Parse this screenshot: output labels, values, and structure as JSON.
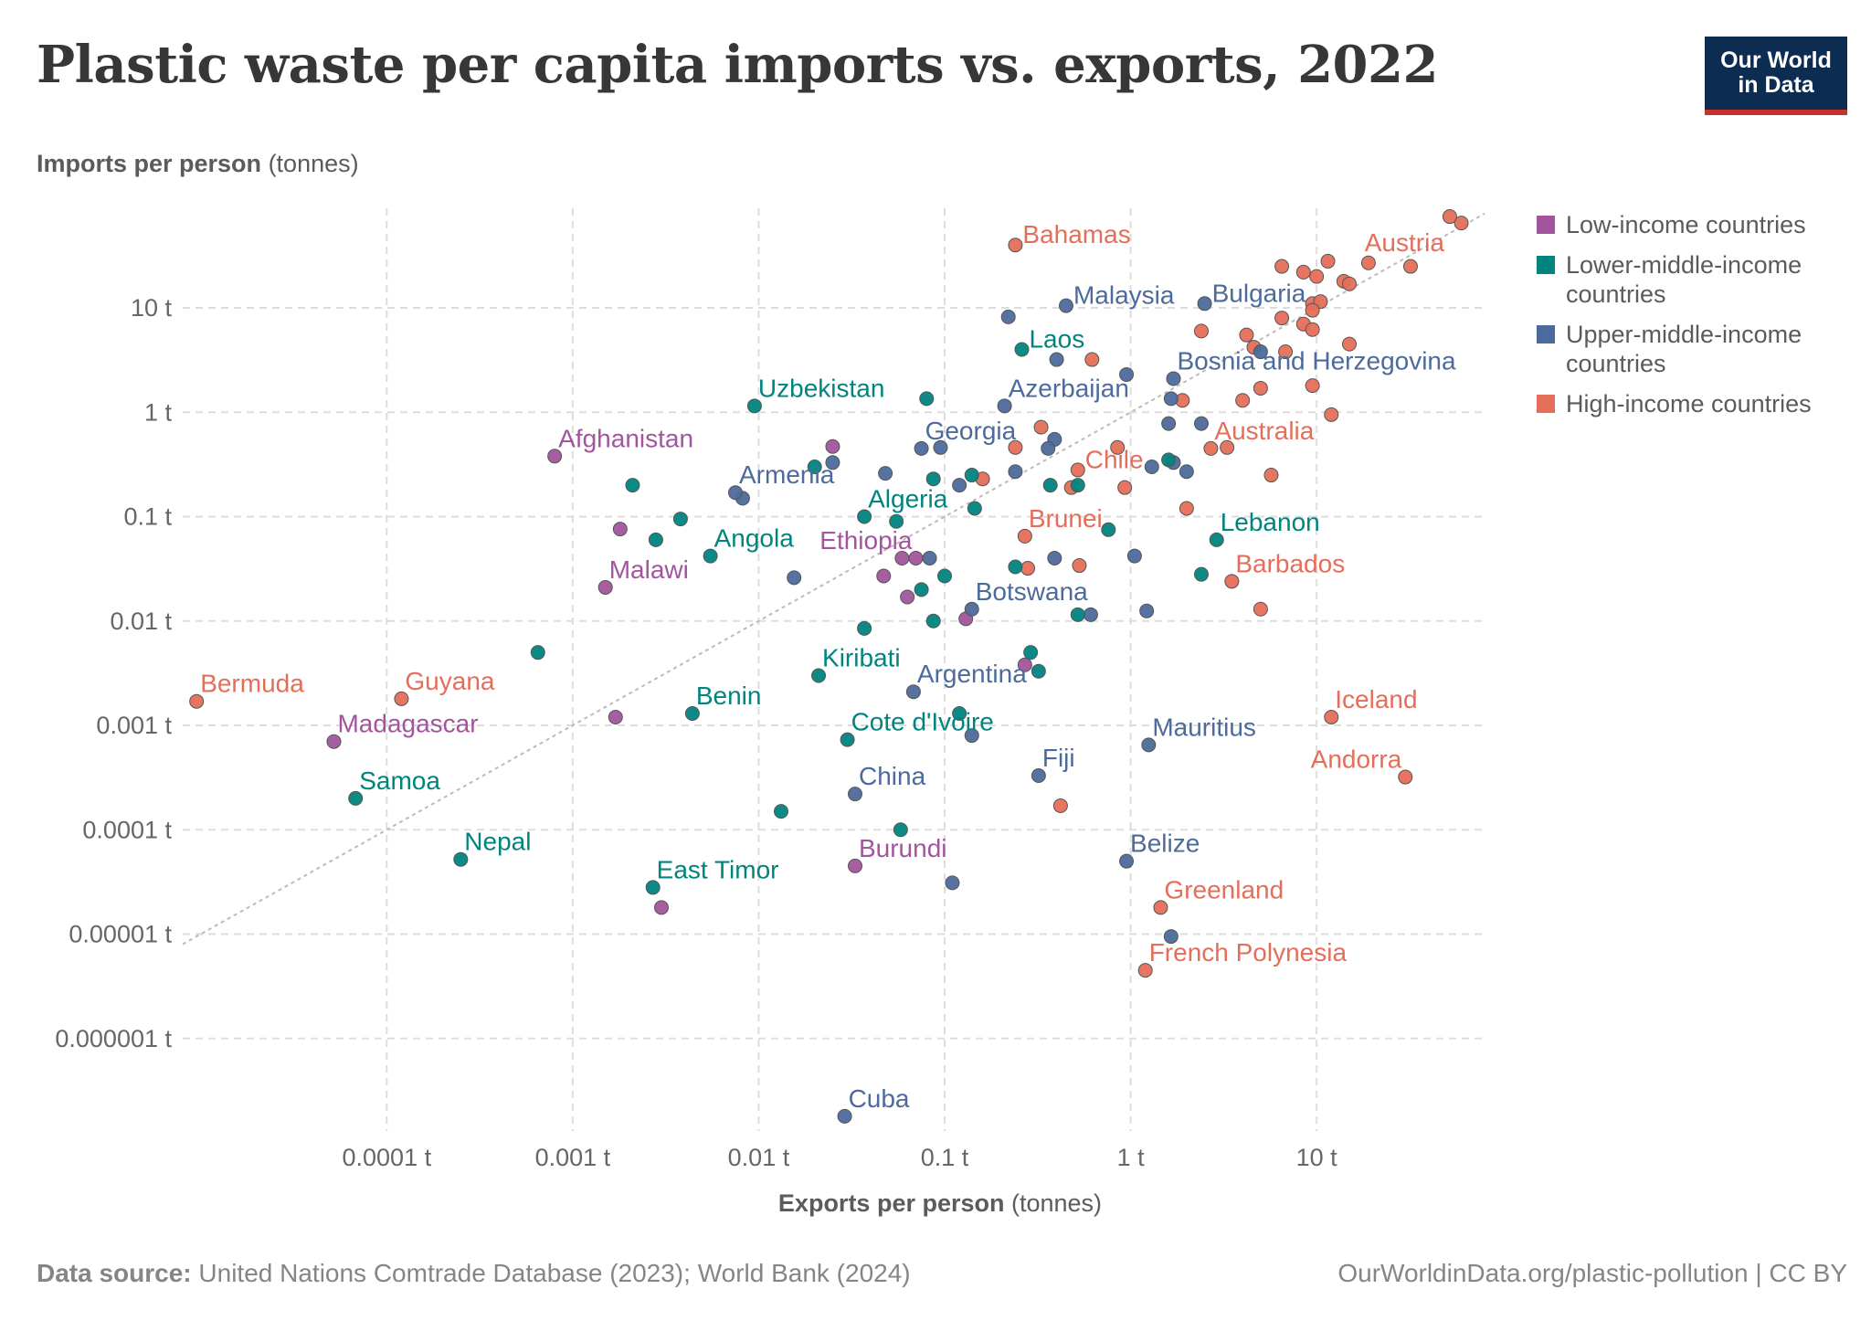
{
  "title": "Plastic waste per capita imports vs. exports, 2022",
  "logo": {
    "line1": "Our World",
    "line2": "in Data"
  },
  "axis_labels": {
    "y_bold": "Imports per person",
    "y_unit": "(tonnes)",
    "x_bold": "Exports per person",
    "x_unit": "(tonnes)"
  },
  "footer": {
    "source_label": "Data source:",
    "source_text": "United Nations Comtrade Database (2023); World Bank (2024)",
    "url_text": "OurWorldinData.org/plastic-pollution | CC BY"
  },
  "colors": {
    "low": "#a2559c",
    "lower_middle": "#00847e",
    "upper_middle": "#4c6a9c",
    "high": "#e56e5a",
    "grid": "#dddddd",
    "diagonal": "#bbbbbb",
    "tick_text": "#666666"
  },
  "legend": [
    {
      "key": "low",
      "label": "Low-income countries"
    },
    {
      "key": "lower_middle",
      "label": "Lower-middle-income countries"
    },
    {
      "key": "upper_middle",
      "label": "Upper-middle-income countries"
    },
    {
      "key": "high",
      "label": "High-income countries"
    }
  ],
  "chart_data": {
    "type": "scatter",
    "title": "Plastic waste per capita imports vs. exports, 2022",
    "xlabel": "Exports per person (tonnes)",
    "ylabel": "Imports per person (tonnes)",
    "x_scale": "log",
    "y_scale": "log",
    "xlim": [
      8e-06,
      80
    ],
    "ylim": [
      1.3e-07,
      90
    ],
    "x_ticks": [
      {
        "v": 0.0001,
        "label": "0.0001 t"
      },
      {
        "v": 0.001,
        "label": "0.001 t"
      },
      {
        "v": 0.01,
        "label": "0.01 t"
      },
      {
        "v": 0.1,
        "label": "0.1 t"
      },
      {
        "v": 1,
        "label": "1 t"
      },
      {
        "v": 10,
        "label": "10 t"
      }
    ],
    "y_ticks": [
      {
        "v": 10,
        "label": "10 t"
      },
      {
        "v": 1,
        "label": "1 t"
      },
      {
        "v": 0.1,
        "label": "0.1 t"
      },
      {
        "v": 0.01,
        "label": "0.01 t"
      },
      {
        "v": 0.001,
        "label": "0.001 t"
      },
      {
        "v": 0.0001,
        "label": "0.0001 t"
      },
      {
        "v": 1e-05,
        "label": "0.00001 t"
      },
      {
        "v": 1e-06,
        "label": "0.000001 t"
      }
    ],
    "diagonal_line": "y = x",
    "grid": true,
    "legend_position": "right",
    "labeled_points": [
      {
        "name": "Bahamas",
        "group": "high",
        "x": 0.24,
        "y": 40,
        "label_pos": "right"
      },
      {
        "name": "Austria",
        "group": "high",
        "x": 52,
        "y": 75,
        "label_pos": "below-left"
      },
      {
        "name": "Malaysia",
        "group": "upper_middle",
        "x": 0.45,
        "y": 10.5,
        "label_pos": "right"
      },
      {
        "name": "Bulgaria",
        "group": "upper_middle",
        "x": 2.5,
        "y": 11,
        "label_pos": "right"
      },
      {
        "name": "Laos",
        "group": "lower_middle",
        "x": 0.26,
        "y": 4,
        "label_pos": "right"
      },
      {
        "name": "Bosnia and Herzegovina",
        "group": "upper_middle",
        "x": 1.7,
        "y": 2.1,
        "label_pos": "above-right"
      },
      {
        "name": "Uzbekistan",
        "group": "lower_middle",
        "x": 0.0095,
        "y": 1.15,
        "label_pos": "above-right"
      },
      {
        "name": "Azerbaijan",
        "group": "upper_middle",
        "x": 0.21,
        "y": 1.15,
        "label_pos": "above-right"
      },
      {
        "name": "Afghanistan",
        "group": "low",
        "x": 0.0008,
        "y": 0.38,
        "label_pos": "above-right"
      },
      {
        "name": "Georgia",
        "group": "upper_middle",
        "x": 0.075,
        "y": 0.45,
        "label_pos": "above-right"
      },
      {
        "name": "Australia",
        "group": "high",
        "x": 2.7,
        "y": 0.45,
        "label_pos": "above-right"
      },
      {
        "name": "Chile",
        "group": "high",
        "x": 0.52,
        "y": 0.28,
        "label_pos": "right"
      },
      {
        "name": "Armenia",
        "group": "upper_middle",
        "x": 0.0075,
        "y": 0.17,
        "label_pos": "above-right"
      },
      {
        "name": "Algeria",
        "group": "lower_middle",
        "x": 0.037,
        "y": 0.1,
        "label_pos": "above-right"
      },
      {
        "name": "Brunei",
        "group": "high",
        "x": 0.27,
        "y": 0.065,
        "label_pos": "above-right"
      },
      {
        "name": "Lebanon",
        "group": "lower_middle",
        "x": 2.9,
        "y": 0.06,
        "label_pos": "above-right"
      },
      {
        "name": "Angola",
        "group": "lower_middle",
        "x": 0.0055,
        "y": 0.042,
        "label_pos": "above-right"
      },
      {
        "name": "Ethiopia",
        "group": "low",
        "x": 0.07,
        "y": 0.04,
        "label_pos": "above-left"
      },
      {
        "name": "Malawi",
        "group": "low",
        "x": 0.0015,
        "y": 0.021,
        "label_pos": "above-right"
      },
      {
        "name": "Barbados",
        "group": "high",
        "x": 3.5,
        "y": 0.024,
        "label_pos": "above-right"
      },
      {
        "name": "Botswana",
        "group": "upper_middle",
        "x": 0.14,
        "y": 0.013,
        "label_pos": "above-right"
      },
      {
        "name": "Kiribati",
        "group": "lower_middle",
        "x": 0.021,
        "y": 0.003,
        "label_pos": "above-right"
      },
      {
        "name": "Argentina",
        "group": "upper_middle",
        "x": 0.068,
        "y": 0.0021,
        "label_pos": "above-right"
      },
      {
        "name": "Bermuda",
        "group": "high",
        "x": 9.5e-06,
        "y": 0.0017,
        "label_pos": "above-right"
      },
      {
        "name": "Guyana",
        "group": "high",
        "x": 0.00012,
        "y": 0.0018,
        "label_pos": "above-right"
      },
      {
        "name": "Benin",
        "group": "lower_middle",
        "x": 0.0044,
        "y": 0.0013,
        "label_pos": "above-right"
      },
      {
        "name": "Madagascar",
        "group": "low",
        "x": 5.2e-05,
        "y": 0.0007,
        "label_pos": "above-right"
      },
      {
        "name": "Cote d'Ivoire",
        "group": "lower_middle",
        "x": 0.03,
        "y": 0.00073,
        "label_pos": "above-right"
      },
      {
        "name": "Mauritius",
        "group": "upper_middle",
        "x": 1.25,
        "y": 0.00065,
        "label_pos": "above-right"
      },
      {
        "name": "Iceland",
        "group": "high",
        "x": 12,
        "y": 0.0012,
        "label_pos": "above-right"
      },
      {
        "name": "Andorra",
        "group": "high",
        "x": 30,
        "y": 0.00032,
        "label_pos": "above-left"
      },
      {
        "name": "Fiji",
        "group": "upper_middle",
        "x": 0.32,
        "y": 0.00033,
        "label_pos": "above-right"
      },
      {
        "name": "Samoa",
        "group": "lower_middle",
        "x": 6.8e-05,
        "y": 0.0002,
        "label_pos": "above-right"
      },
      {
        "name": "China",
        "group": "upper_middle",
        "x": 0.033,
        "y": 0.00022,
        "label_pos": "above-right"
      },
      {
        "name": "Nepal",
        "group": "lower_middle",
        "x": 0.00025,
        "y": 5.2e-05,
        "label_pos": "above-right"
      },
      {
        "name": "Belize",
        "group": "upper_middle",
        "x": 0.95,
        "y": 5e-05,
        "label_pos": "above-right"
      },
      {
        "name": "Burundi",
        "group": "low",
        "x": 0.033,
        "y": 4.5e-05,
        "label_pos": "above-right"
      },
      {
        "name": "East Timor",
        "group": "lower_middle",
        "x": 0.0027,
        "y": 2.8e-05,
        "label_pos": "above-right"
      },
      {
        "name": "Greenland",
        "group": "high",
        "x": 1.45,
        "y": 1.8e-05,
        "label_pos": "above-right"
      },
      {
        "name": "French Polynesia",
        "group": "high",
        "x": 1.2,
        "y": 4.5e-06,
        "label_pos": "above-right"
      },
      {
        "name": "Cuba",
        "group": "upper_middle",
        "x": 0.029,
        "y": 1.8e-07,
        "label_pos": "above-right"
      }
    ],
    "unlabeled_points": [
      {
        "group": "high",
        "x": 60,
        "y": 65
      },
      {
        "group": "high",
        "x": 6.5,
        "y": 25
      },
      {
        "group": "high",
        "x": 8.5,
        "y": 22
      },
      {
        "group": "high",
        "x": 11.5,
        "y": 28
      },
      {
        "group": "high",
        "x": 19,
        "y": 27
      },
      {
        "group": "high",
        "x": 32,
        "y": 25
      },
      {
        "group": "high",
        "x": 10,
        "y": 20
      },
      {
        "group": "high",
        "x": 14,
        "y": 18
      },
      {
        "group": "high",
        "x": 15,
        "y": 17
      },
      {
        "group": "high",
        "x": 9.5,
        "y": 11
      },
      {
        "group": "high",
        "x": 10.5,
        "y": 11.5
      },
      {
        "group": "high",
        "x": 9.5,
        "y": 9.5
      },
      {
        "group": "high",
        "x": 6.5,
        "y": 8
      },
      {
        "group": "high",
        "x": 8.5,
        "y": 7
      },
      {
        "group": "high",
        "x": 9.5,
        "y": 6.2
      },
      {
        "group": "high",
        "x": 2.4,
        "y": 6
      },
      {
        "group": "high",
        "x": 4.2,
        "y": 5.5
      },
      {
        "group": "high",
        "x": 15,
        "y": 4.5
      },
      {
        "group": "high",
        "x": 4.6,
        "y": 4.2
      },
      {
        "group": "high",
        "x": 6.8,
        "y": 3.8
      },
      {
        "group": "high",
        "x": 0.62,
        "y": 3.2
      },
      {
        "group": "high",
        "x": 5,
        "y": 1.7
      },
      {
        "group": "high",
        "x": 9.5,
        "y": 1.8
      },
      {
        "group": "high",
        "x": 1.9,
        "y": 1.3
      },
      {
        "group": "high",
        "x": 4,
        "y": 1.3
      },
      {
        "group": "high",
        "x": 12,
        "y": 0.95
      },
      {
        "group": "high",
        "x": 0.33,
        "y": 0.72
      },
      {
        "group": "high",
        "x": 0.24,
        "y": 0.46
      },
      {
        "group": "high",
        "x": 0.85,
        "y": 0.46
      },
      {
        "group": "high",
        "x": 3.3,
        "y": 0.46
      },
      {
        "group": "high",
        "x": 0.16,
        "y": 0.23
      },
      {
        "group": "high",
        "x": 5.7,
        "y": 0.25
      },
      {
        "group": "high",
        "x": 0.48,
        "y": 0.19
      },
      {
        "group": "high",
        "x": 0.93,
        "y": 0.19
      },
      {
        "group": "high",
        "x": 2,
        "y": 0.12
      },
      {
        "group": "high",
        "x": 0.28,
        "y": 0.032
      },
      {
        "group": "high",
        "x": 0.53,
        "y": 0.034
      },
      {
        "group": "high",
        "x": 5,
        "y": 0.013
      },
      {
        "group": "high",
        "x": 0.42,
        "y": 0.00017
      },
      {
        "group": "upper_middle",
        "x": 0.22,
        "y": 8.2
      },
      {
        "group": "upper_middle",
        "x": 0.4,
        "y": 3.2
      },
      {
        "group": "upper_middle",
        "x": 5,
        "y": 3.8
      },
      {
        "group": "upper_middle",
        "x": 0.95,
        "y": 2.3
      },
      {
        "group": "upper_middle",
        "x": 1.65,
        "y": 1.35
      },
      {
        "group": "upper_middle",
        "x": 2.4,
        "y": 0.78
      },
      {
        "group": "upper_middle",
        "x": 1.6,
        "y": 0.78
      },
      {
        "group": "upper_middle",
        "x": 0.39,
        "y": 0.55
      },
      {
        "group": "upper_middle",
        "x": 0.095,
        "y": 0.46
      },
      {
        "group": "upper_middle",
        "x": 0.36,
        "y": 0.45
      },
      {
        "group": "upper_middle",
        "x": 1.7,
        "y": 0.33
      },
      {
        "group": "upper_middle",
        "x": 1.3,
        "y": 0.3
      },
      {
        "group": "upper_middle",
        "x": 2,
        "y": 0.27
      },
      {
        "group": "upper_middle",
        "x": 0.025,
        "y": 0.33
      },
      {
        "group": "upper_middle",
        "x": 0.048,
        "y": 0.26
      },
      {
        "group": "upper_middle",
        "x": 0.24,
        "y": 0.27
      },
      {
        "group": "upper_middle",
        "x": 0.12,
        "y": 0.2
      },
      {
        "group": "upper_middle",
        "x": 0.0082,
        "y": 0.15
      },
      {
        "group": "upper_middle",
        "x": 0.083,
        "y": 0.04
      },
      {
        "group": "upper_middle",
        "x": 0.39,
        "y": 0.04
      },
      {
        "group": "upper_middle",
        "x": 1.05,
        "y": 0.042
      },
      {
        "group": "upper_middle",
        "x": 0.0155,
        "y": 0.026
      },
      {
        "group": "upper_middle",
        "x": 0.61,
        "y": 0.0115
      },
      {
        "group": "upper_middle",
        "x": 1.22,
        "y": 0.0125
      },
      {
        "group": "upper_middle",
        "x": 0.14,
        "y": 0.0008
      },
      {
        "group": "upper_middle",
        "x": 0.11,
        "y": 3.1e-05
      },
      {
        "group": "upper_middle",
        "x": 1.65,
        "y": 9.5e-06
      },
      {
        "group": "lower_middle",
        "x": 0.08,
        "y": 1.35
      },
      {
        "group": "lower_middle",
        "x": 0.02,
        "y": 0.3
      },
      {
        "group": "lower_middle",
        "x": 0.0021,
        "y": 0.2
      },
      {
        "group": "lower_middle",
        "x": 0.087,
        "y": 0.23
      },
      {
        "group": "lower_middle",
        "x": 0.14,
        "y": 0.25
      },
      {
        "group": "lower_middle",
        "x": 0.37,
        "y": 0.2
      },
      {
        "group": "lower_middle",
        "x": 0.52,
        "y": 0.2
      },
      {
        "group": "lower_middle",
        "x": 1.6,
        "y": 0.35
      },
      {
        "group": "lower_middle",
        "x": 0.0038,
        "y": 0.095
      },
      {
        "group": "lower_middle",
        "x": 0.0028,
        "y": 0.06
      },
      {
        "group": "lower_middle",
        "x": 0.055,
        "y": 0.09
      },
      {
        "group": "lower_middle",
        "x": 0.145,
        "y": 0.12
      },
      {
        "group": "lower_middle",
        "x": 0.76,
        "y": 0.075
      },
      {
        "group": "lower_middle",
        "x": 0.24,
        "y": 0.033
      },
      {
        "group": "lower_middle",
        "x": 0.1,
        "y": 0.027
      },
      {
        "group": "lower_middle",
        "x": 2.4,
        "y": 0.028
      },
      {
        "group": "lower_middle",
        "x": 0.075,
        "y": 0.02
      },
      {
        "group": "lower_middle",
        "x": 0.087,
        "y": 0.01
      },
      {
        "group": "lower_middle",
        "x": 0.52,
        "y": 0.0115
      },
      {
        "group": "lower_middle",
        "x": 0.037,
        "y": 0.0085
      },
      {
        "group": "lower_middle",
        "x": 0.29,
        "y": 0.005
      },
      {
        "group": "lower_middle",
        "x": 0.32,
        "y": 0.0033
      },
      {
        "group": "lower_middle",
        "x": 0.00065,
        "y": 0.005
      },
      {
        "group": "lower_middle",
        "x": 0.12,
        "y": 0.0013
      },
      {
        "group": "lower_middle",
        "x": 0.0132,
        "y": 0.00015
      },
      {
        "group": "lower_middle",
        "x": 0.058,
        "y": 0.0001
      },
      {
        "group": "low",
        "x": 0.025,
        "y": 0.47
      },
      {
        "group": "low",
        "x": 0.0018,
        "y": 0.076
      },
      {
        "group": "low",
        "x": 0.059,
        "y": 0.04
      },
      {
        "group": "low",
        "x": 0.047,
        "y": 0.027
      },
      {
        "group": "low",
        "x": 0.063,
        "y": 0.017
      },
      {
        "group": "low",
        "x": 0.13,
        "y": 0.0105
      },
      {
        "group": "low",
        "x": 0.27,
        "y": 0.0038
      },
      {
        "group": "low",
        "x": 0.0017,
        "y": 0.0012
      },
      {
        "group": "low",
        "x": 0.003,
        "y": 1.8e-05
      }
    ]
  }
}
